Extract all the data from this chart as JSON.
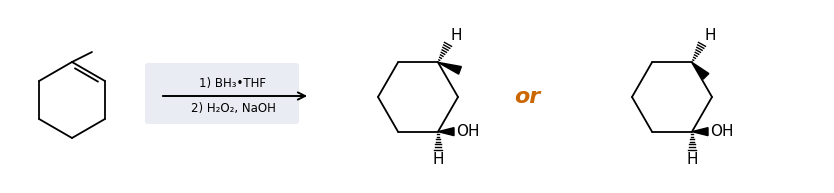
{
  "background_color": "#ffffff",
  "arrow_box_color": "#eaecf4",
  "reagent_line1": "1) BH₃•THF",
  "reagent_line2": "2) H₂O₂, NaOH",
  "or_text": "or",
  "or_color": "#cc6600",
  "or_fontsize": 16,
  "label_fontsize": 10,
  "reagent_fontsize": 8.5,
  "fig_width": 8.34,
  "fig_height": 1.93,
  "dpi": 100
}
